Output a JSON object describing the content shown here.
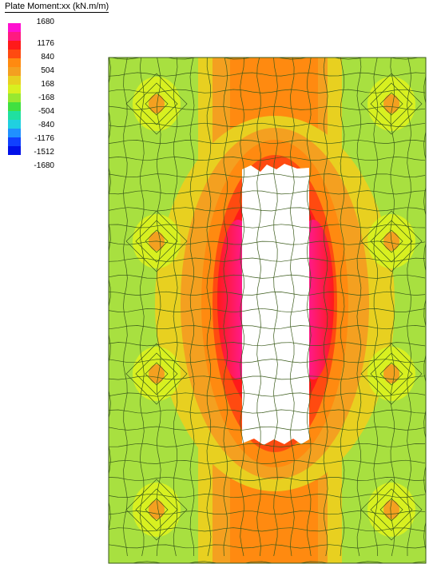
{
  "legend": {
    "title": "Plate Moment:xx (kN.m/m)",
    "labels": [
      "1680",
      "1176",
      "840",
      "504",
      "168",
      "-168",
      "-504",
      "-840",
      "-1176",
      "-1512",
      "-1680"
    ],
    "colors": [
      "#ff10d0",
      "#ff1a80",
      "#ff1a1a",
      "#ff4a10",
      "#ff8a10",
      "#f4a020",
      "#e8d020",
      "#d8f020",
      "#98e830",
      "#40e040",
      "#20e0a0",
      "#20d0e0",
      "#2090ff",
      "#1040ff",
      "#0010e8"
    ]
  },
  "contour_plot": {
    "background_color": "#a8e040",
    "mesh_color": "#3a5a1a",
    "opening_color": "#ffffff"
  }
}
